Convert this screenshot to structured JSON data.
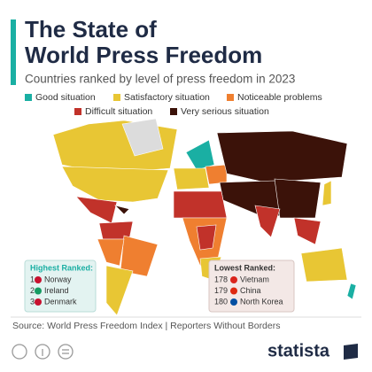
{
  "header": {
    "title": [
      "The State of",
      "World Press Freedom"
    ],
    "subtitle": "Countries ranked by level of press freedom in 2023"
  },
  "legend": [
    {
      "label": "Good situation",
      "color": "#1aafa3"
    },
    {
      "label": "Satisfactory situation",
      "color": "#e8c634"
    },
    {
      "label": "Noticeable problems",
      "color": "#ef7f30"
    },
    {
      "label": "Difficult situation",
      "color": "#c1322a"
    },
    {
      "label": "Very serious situation",
      "color": "#3b1209"
    }
  ],
  "highest": {
    "title": "Highest Ranked:",
    "rows": [
      {
        "rank": 1,
        "country": "Norway"
      },
      {
        "rank": 2,
        "country": "Ireland"
      },
      {
        "rank": 3,
        "country": "Denmark"
      }
    ]
  },
  "lowest": {
    "title": "Lowest Ranked:",
    "rows": [
      {
        "rank": 178,
        "country": "Vietnam"
      },
      {
        "rank": 179,
        "country": "China"
      },
      {
        "rank": 180,
        "country": "North Korea"
      }
    ]
  },
  "footer": {
    "source": "Source: World Press Freedom Index | Reporters Without Borders",
    "brand": "statista"
  }
}
